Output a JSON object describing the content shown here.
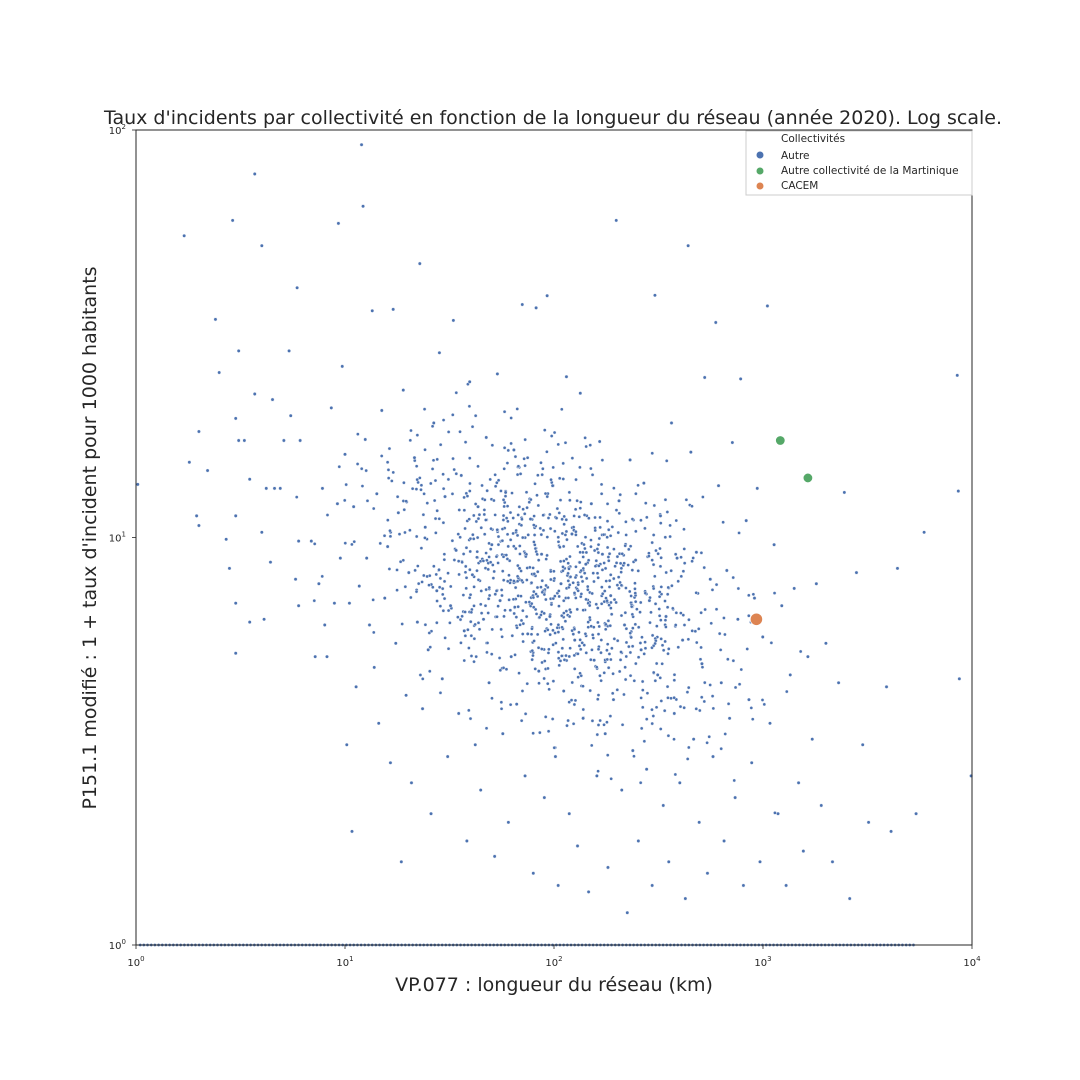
{
  "chart_data": {
    "type": "scatter",
    "title": "Taux d'incidents par collectivité en fonction de la longueur du réseau (année 2020). Log scale.",
    "xlabel": "VP.077 : longueur du réseau (km)",
    "ylabel": "P151.1 modifié : 1 + taux d'incident pour 1000 habitants",
    "x_scale": "log",
    "y_scale": "log",
    "xlim": [
      1,
      10000
    ],
    "ylim": [
      1,
      100
    ],
    "x_ticks": [
      1,
      10,
      100,
      1000,
      10000
    ],
    "y_ticks": [
      1,
      10,
      100
    ],
    "grid": false,
    "legend": {
      "title": "Collectivités",
      "position": "top-right",
      "entries": [
        "Autre",
        "Autre collectivité de la Martinique",
        "CACEM"
      ]
    },
    "series": [
      {
        "name": "Autre",
        "color": "#4c72b0",
        "note_points": "dense cloud, ~1500 communes; representative sample below",
        "points": [
          [
            1.02,
            13.5
          ],
          [
            1.7,
            55
          ],
          [
            1.8,
            15.3
          ],
          [
            1.95,
            11.3
          ],
          [
            2.0,
            10.7
          ],
          [
            2.0,
            18.2
          ],
          [
            2.2,
            14.6
          ],
          [
            2.4,
            34.3
          ],
          [
            2.5,
            25.4
          ],
          [
            2.7,
            9.9
          ],
          [
            2.8,
            8.4
          ],
          [
            2.9,
            60
          ],
          [
            3.0,
            19.6
          ],
          [
            3.0,
            11.3
          ],
          [
            3.0,
            6.9
          ],
          [
            3.0,
            5.2
          ],
          [
            3.1,
            17.3
          ],
          [
            3.1,
            28.7
          ],
          [
            3.3,
            17.3
          ],
          [
            3.5,
            6.2
          ],
          [
            3.5,
            13.9
          ],
          [
            3.7,
            22.5
          ],
          [
            3.7,
            78
          ],
          [
            4.0,
            52
          ],
          [
            4.0,
            10.3
          ],
          [
            4.1,
            6.3
          ],
          [
            4.2,
            13.2
          ],
          [
            4.4,
            8.7
          ],
          [
            4.5,
            21.8
          ],
          [
            4.6,
            13.2
          ],
          [
            4.9,
            13.2
          ],
          [
            5.1,
            17.3
          ],
          [
            5.4,
            28.7
          ],
          [
            5.5,
            19.9
          ],
          [
            5.8,
            7.9
          ],
          [
            5.9,
            41
          ],
          [
            6.0,
            9.8
          ],
          [
            6.0,
            6.8
          ],
          [
            6.1,
            17.3
          ],
          [
            6.9,
            9.8
          ],
          [
            7.2,
            5.1
          ],
          [
            7.5,
            7.7
          ],
          [
            7.8,
            13.2
          ],
          [
            8.0,
            6.1
          ],
          [
            8.2,
            5.1
          ],
          [
            8.6,
            20.8
          ],
          [
            8.9,
            6.9
          ],
          [
            9.2,
            12.1
          ],
          [
            9.3,
            59
          ],
          [
            9.5,
            8.9
          ],
          [
            9.7,
            26.3
          ],
          [
            10.0,
            16
          ],
          [
            10.2,
            3.1
          ],
          [
            10.5,
            6.9
          ],
          [
            10.8,
            1.9
          ],
          [
            11.0,
            11.9
          ],
          [
            11.3,
            4.3
          ],
          [
            11.7,
            7.6
          ],
          [
            12.0,
            92
          ],
          [
            12.2,
            65
          ],
          [
            12.5,
            17.4
          ],
          [
            12.7,
            8.9
          ],
          [
            13.1,
            6.1
          ],
          [
            13.5,
            36
          ],
          [
            13.8,
            4.8
          ],
          [
            14.2,
            12.8
          ],
          [
            14.5,
            3.5
          ],
          [
            15.0,
            20.5
          ],
          [
            15.5,
            7.1
          ],
          [
            16.0,
            9.5
          ],
          [
            16.5,
            2.8
          ],
          [
            17.0,
            36.3
          ],
          [
            17.5,
            5.5
          ],
          [
            18.0,
            11.5
          ],
          [
            18.6,
            1.6
          ],
          [
            19.0,
            23
          ],
          [
            19.6,
            4.1
          ],
          [
            20.2,
            8.2
          ],
          [
            20.8,
            2.5
          ],
          [
            21.5,
            15.7
          ],
          [
            22.2,
            6.2
          ],
          [
            22.8,
            47
          ],
          [
            23.5,
            3.8
          ],
          [
            24.2,
            10.6
          ],
          [
            25.0,
            5.3
          ],
          [
            25.8,
            2.1
          ],
          [
            26.6,
            19.1
          ],
          [
            27.5,
            7.4
          ],
          [
            28.3,
            28.4
          ],
          [
            29.2,
            4.5
          ],
          [
            30.1,
            12.6
          ],
          [
            31.0,
            2.9
          ],
          [
            32.0,
            6.8
          ],
          [
            33.0,
            34.1
          ],
          [
            34.0,
            9.3
          ],
          [
            35.0,
            3.7
          ],
          [
            36.0,
            14.2
          ],
          [
            37.2,
            5.9
          ],
          [
            38.3,
            1.8
          ],
          [
            39.5,
            24.1
          ],
          [
            40.7,
            8.1
          ],
          [
            42.0,
            3.1
          ],
          [
            43.3,
            11.9
          ],
          [
            44.6,
            2.4
          ],
          [
            46.0,
            6.3
          ],
          [
            47.4,
            17.6
          ],
          [
            48.9,
            4.4
          ],
          [
            50.4,
            9.6
          ],
          [
            52.0,
            1.65
          ],
          [
            53.6,
            25.2
          ],
          [
            55.2,
            7.0
          ],
          [
            56.9,
            3.3
          ],
          [
            58.7,
            12.9
          ],
          [
            60.5,
            2.0
          ],
          [
            62.4,
            5.1
          ],
          [
            64.3,
            16.4
          ],
          [
            66.3,
            3.9
          ],
          [
            68.4,
            8.4
          ],
          [
            70.5,
            37.3
          ],
          [
            72.7,
            2.6
          ],
          [
            74.9,
            5.8
          ],
          [
            77.2,
            11.1
          ],
          [
            79.6,
            1.5
          ],
          [
            82.1,
            36.6
          ],
          [
            84.6,
            4.7
          ],
          [
            87.2,
            9.1
          ],
          [
            89.9,
            2.3
          ],
          [
            92.7,
            39.2
          ],
          [
            95.6,
            6.4
          ],
          [
            98.5,
            13.4
          ],
          [
            101.6,
            2.9
          ],
          [
            104.7,
            1.4
          ],
          [
            108,
            7.7
          ],
          [
            111.3,
            4.2
          ],
          [
            114.7,
            24.8
          ],
          [
            118.3,
            2.1
          ],
          [
            121.9,
            10.2
          ],
          [
            125.7,
            5.6
          ],
          [
            129.6,
            1.75
          ],
          [
            133.6,
            22.6
          ],
          [
            137.8,
            3.6
          ],
          [
            142.0,
            8.6
          ],
          [
            146.4,
            1.35
          ],
          [
            150.9,
            12.1
          ],
          [
            155.6,
            5.0
          ],
          [
            160.4,
            2.6
          ],
          [
            165.4,
            17.2
          ],
          [
            170.5,
            9.1
          ],
          [
            175.8,
            3.3
          ],
          [
            181.2,
            1.55
          ],
          [
            186.8,
            7.2
          ],
          [
            192.6,
            4.0
          ],
          [
            198.5,
            60
          ],
          [
            204.7,
            12.3
          ],
          [
            211,
            2.4
          ],
          [
            217.5,
            6.1
          ],
          [
            224.2,
            1.2
          ],
          [
            231.2,
            15.5
          ],
          [
            238.3,
            3.0
          ],
          [
            245.7,
            8.8
          ],
          [
            253.3,
            1.8
          ],
          [
            261.1,
            5.3
          ],
          [
            269.2,
            13.6
          ],
          [
            277.5,
            2.7
          ],
          [
            286.1,
            7.0
          ],
          [
            294.9,
            1.4
          ],
          [
            304.1,
            39.3
          ],
          [
            313.5,
            4.6
          ],
          [
            323.2,
            11.3
          ],
          [
            333.2,
            2.2
          ],
          [
            343.5,
            6.4
          ],
          [
            354.1,
            1.6
          ],
          [
            365.0,
            19.1
          ],
          [
            376.3,
            3.7
          ],
          [
            388.0,
            8.9
          ],
          [
            400,
            2.5
          ],
          [
            412.4,
            5.6
          ],
          [
            425.1,
            1.3
          ],
          [
            438.3,
            52
          ],
          [
            451.8,
            16.2
          ],
          [
            465.8,
            3.2
          ],
          [
            480.2,
            9.2
          ],
          [
            495,
            2.0
          ],
          [
            510.3,
            4.9
          ],
          [
            526.1,
            24.7
          ],
          [
            542.4,
            1.5
          ],
          [
            559.2,
            7.9
          ],
          [
            576.5,
            2.9
          ],
          [
            594.3,
            33.7
          ],
          [
            612.7,
            13.4
          ],
          [
            631.6,
            4.4
          ],
          [
            651.2,
            1.8
          ],
          [
            671.3,
            8.3
          ],
          [
            692.1,
            3.6
          ],
          [
            713.5,
            17.1
          ],
          [
            735.6,
            2.3
          ],
          [
            758.3,
            6.3
          ],
          [
            781.8,
            24.5
          ],
          [
            806,
            1.4
          ],
          [
            830.9,
            11.0
          ],
          [
            856.6,
            4.0
          ],
          [
            883.1,
            2.8
          ],
          [
            910.5,
            7.1
          ],
          [
            938.6,
            13.2
          ],
          [
            967.6,
            1.6
          ],
          [
            997.5,
            5.7
          ],
          [
            1050,
            37
          ],
          [
            1080,
            3.5
          ],
          [
            1130,
            9.6
          ],
          [
            1180,
            2.1
          ],
          [
            1230,
            6.8
          ],
          [
            1290,
            1.4
          ],
          [
            1350,
            4.6
          ],
          [
            1410,
            7.5
          ],
          [
            1480,
            2.5
          ],
          [
            1560,
            1.7
          ],
          [
            1640,
            5.1
          ],
          [
            1720,
            3.2
          ],
          [
            1800,
            7.7
          ],
          [
            1900,
            2.2
          ],
          [
            2000,
            5.5
          ],
          [
            2150,
            1.6
          ],
          [
            2300,
            4.4
          ],
          [
            2450,
            12.9
          ],
          [
            2600,
            1.3
          ],
          [
            2800,
            8.2
          ],
          [
            3000,
            3.1
          ],
          [
            3200,
            2.0
          ],
          [
            3900,
            4.3
          ],
          [
            4100,
            1.9
          ],
          [
            4400,
            8.4
          ],
          [
            5400,
            2.1
          ],
          [
            5900,
            10.3
          ],
          [
            8500,
            25
          ],
          [
            8600,
            13
          ],
          [
            8700,
            4.5
          ],
          [
            9900,
            2.6
          ]
        ]
      },
      {
        "name": "Autre collectivité de la Martinique",
        "color": "#55a868",
        "points": [
          [
            1210,
            17.3
          ],
          [
            1640,
            14.0
          ]
        ]
      },
      {
        "name": "CACEM",
        "color": "#dd8452",
        "points": [
          [
            930,
            6.3
          ]
        ]
      }
    ],
    "baseline_points_y": 1
  }
}
